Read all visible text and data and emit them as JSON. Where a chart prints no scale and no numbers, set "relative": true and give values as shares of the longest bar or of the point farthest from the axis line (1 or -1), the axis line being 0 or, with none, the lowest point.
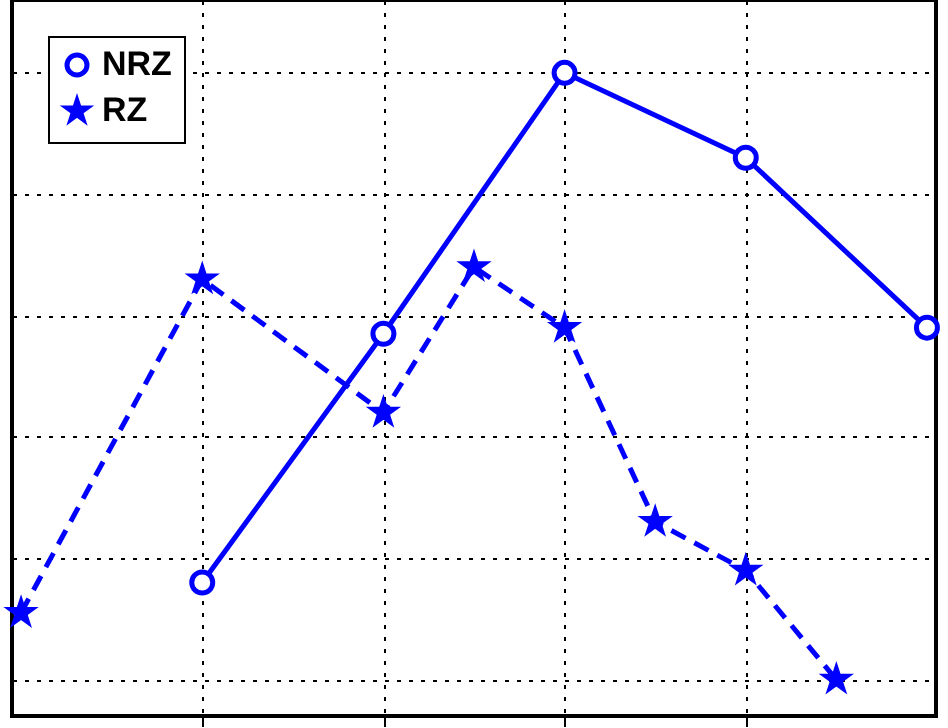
{
  "chart_data": {
    "type": "line",
    "relative": true,
    "grid": true,
    "legend": "top left",
    "categories": [
      null,
      null,
      null,
      null,
      null,
      null,
      null,
      null,
      null,
      null,
      null
    ],
    "series": [
      {
        "name": "NRZ",
        "color": "#0000ff",
        "marker": "circle",
        "line_style": "solid",
        "values": [
          null,
          null,
          0.16,
          null,
          0.57,
          null,
          1,
          null,
          0.86,
          null,
          0.58
        ]
      },
      {
        "name": "RZ",
        "color": "#0000ff",
        "marker": "star",
        "line_style": "dashed",
        "values": [
          0.11,
          null,
          0.66,
          null,
          0.44,
          0.68,
          0.58,
          0.26,
          0.18,
          0,
          null
        ]
      }
    ]
  }
}
